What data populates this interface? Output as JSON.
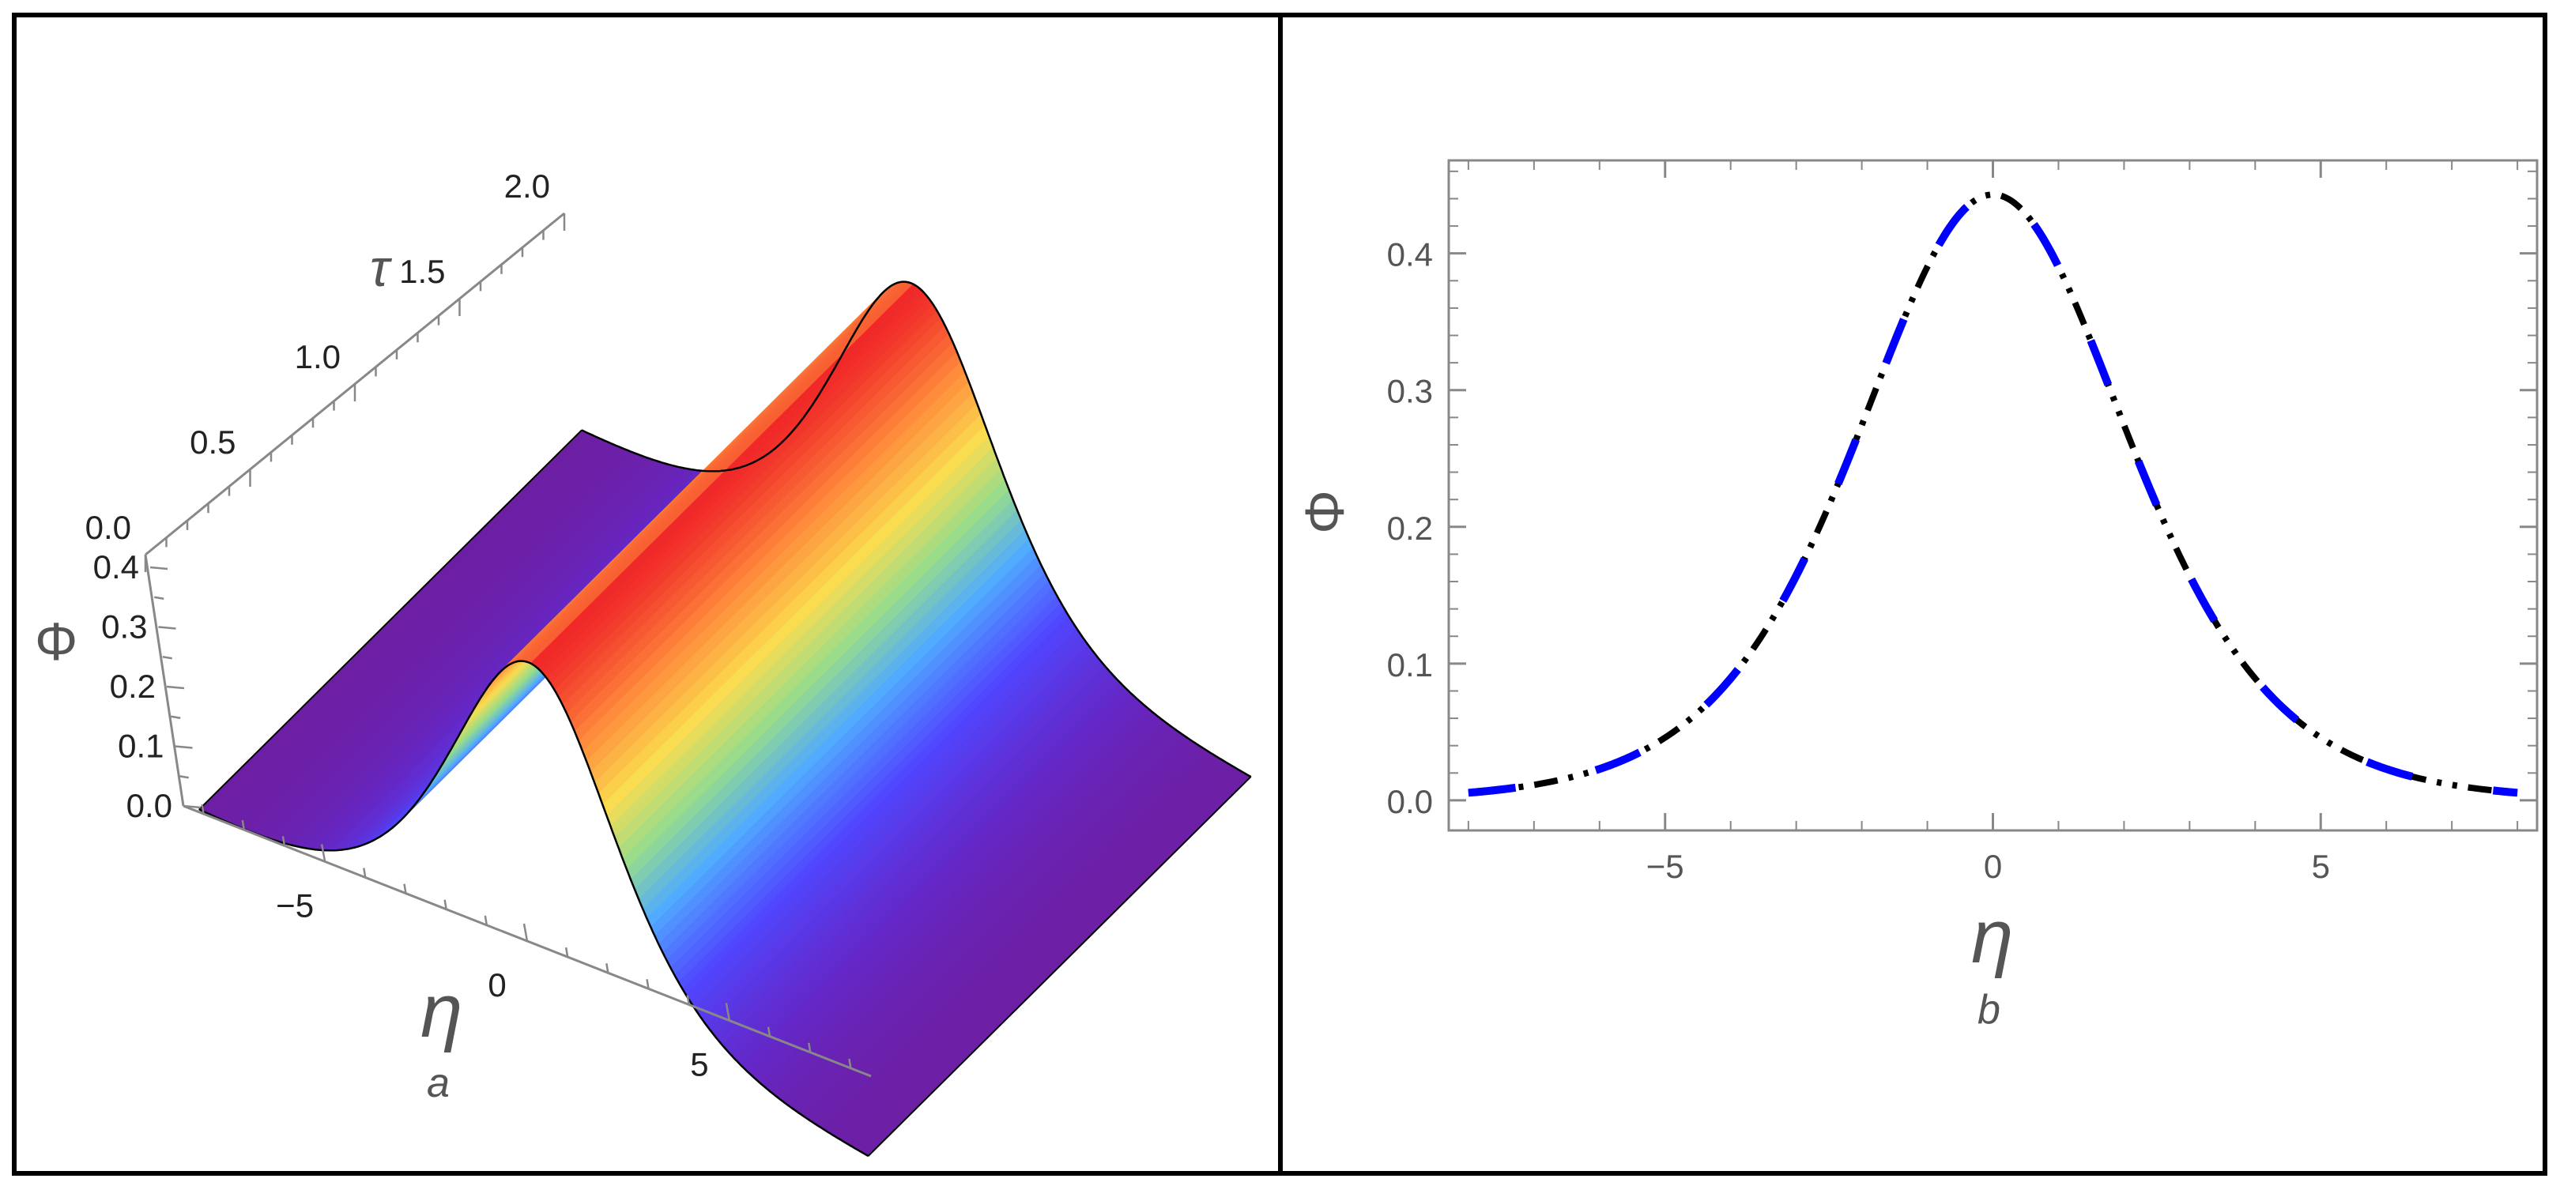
{
  "figure": {
    "panel_a": {
      "sublabel": "a",
      "axes": {
        "tau_label": "τ",
        "eta_label": "η",
        "phi_label": "Φ",
        "tau_ticks": [
          "0.0",
          "0.5",
          "1.0",
          "1.5",
          "2.0"
        ],
        "eta_ticks": [
          "−5",
          "0",
          "5"
        ],
        "phi_ticks": [
          "0.0",
          "0.1",
          "0.2",
          "0.3",
          "0.4"
        ]
      }
    },
    "panel_b": {
      "sublabel": "b",
      "xlabel": "η",
      "ylabel": "Φ",
      "x_ticks": [
        "−5",
        "0",
        "5"
      ],
      "y_ticks": [
        "0.0",
        "0.1",
        "0.2",
        "0.3",
        "0.4"
      ]
    }
  },
  "chart_data": [
    {
      "type": "area",
      "surface": "3d",
      "x_name": "η",
      "y_name": "τ",
      "z_name": "Φ",
      "xlim": [
        -8.5,
        8.5
      ],
      "ylim": [
        0,
        2
      ],
      "zlim": [
        0,
        0.45
      ],
      "eta": [
        -8.5,
        -8,
        -7,
        -6,
        -5,
        -4,
        -3,
        -2,
        -1,
        0,
        1,
        2,
        3,
        4,
        5,
        6,
        7,
        8,
        8.5
      ],
      "phi": [
        0.002,
        0.003,
        0.007,
        0.013,
        0.024,
        0.044,
        0.083,
        0.163,
        0.317,
        0.443,
        0.317,
        0.163,
        0.083,
        0.044,
        0.024,
        0.013,
        0.007,
        0.003,
        0.002
      ],
      "note_constant_in_tau": true,
      "colorscheme": "rainbow"
    },
    {
      "type": "line",
      "xlabel": "η",
      "ylabel": "Φ",
      "xlim": [
        -8.3,
        8.3
      ],
      "ylim": [
        -0.022,
        0.468
      ],
      "x": [
        -8,
        -7,
        -6,
        -5,
        -4,
        -3,
        -2,
        -1,
        0,
        1,
        2,
        3,
        4,
        5,
        6,
        7,
        8
      ],
      "y": [
        0.003,
        0.007,
        0.013,
        0.024,
        0.044,
        0.083,
        0.163,
        0.317,
        0.443,
        0.317,
        0.163,
        0.083,
        0.044,
        0.024,
        0.013,
        0.007,
        0.003
      ],
      "series": [
        {
          "name": "",
          "style": "dashed",
          "color": "#0000ff"
        },
        {
          "name": "",
          "style": "dash-dot-dot",
          "color": "#000000"
        }
      ]
    }
  ],
  "colors": {
    "frame": "#000000",
    "curve_blue": "#0000ff",
    "curve_black": "#000000",
    "axis_gray": "#888888"
  }
}
